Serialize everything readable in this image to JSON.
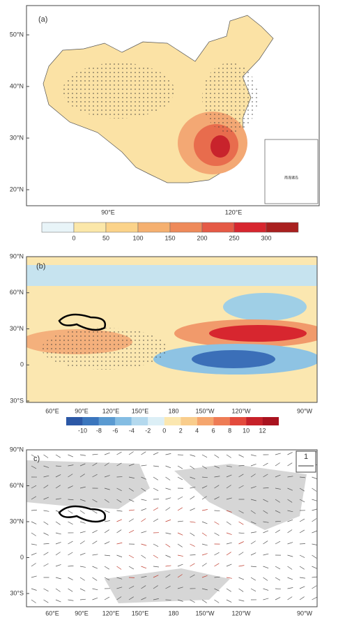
{
  "panel_a": {
    "label": "(a)",
    "y_axis": [
      "50°N",
      "40°N",
      "30°N",
      "20°N"
    ],
    "x_axis": [
      "90°E",
      "120°E"
    ],
    "inset_label": "南海诸岛",
    "colorbar": [
      "0",
      "50",
      "100",
      "150",
      "200",
      "250",
      "300"
    ]
  },
  "panel_b": {
    "label": "(b)",
    "y_axis": [
      "90°N",
      "60°N",
      "30°N",
      "0",
      "30°S"
    ],
    "x_axis": [
      "60°E",
      "90°E",
      "120°E",
      "150°E",
      "180",
      "150°W",
      "120°W",
      "90°W"
    ],
    "colorbar": [
      "-10",
      "-8",
      "-6",
      "-4",
      "-2",
      "0",
      "2",
      "4",
      "6",
      "8",
      "10",
      "12"
    ]
  },
  "panel_c": {
    "label": "c)",
    "y_axis": [
      "90°N",
      "60°N",
      "30°N",
      "0",
      "30°S"
    ],
    "x_axis": [
      "60°E",
      "90°E",
      "120°E",
      "150°E",
      "180",
      "150°W",
      "120°W",
      "90°W"
    ],
    "reference_vector": "1"
  }
}
